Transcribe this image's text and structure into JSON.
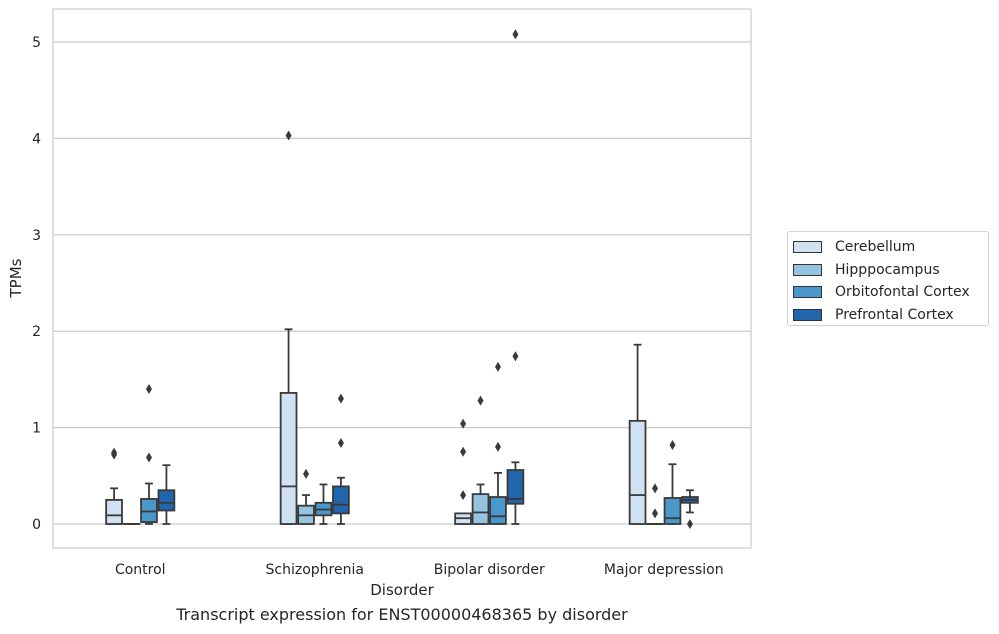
{
  "caption": "Transcript expression for ENST00000468365 by disorder",
  "chart_data": {
    "type": "box",
    "xlabel": "Disorder",
    "ylabel": "TPMs",
    "ylim": [
      -0.25,
      5.35
    ],
    "yticks": [
      0,
      1,
      2,
      3,
      4,
      5
    ],
    "grid": "horizontal",
    "legend_placement": "right",
    "categories": [
      "Control",
      "Schizophrenia",
      "Bipolar disorder",
      "Major depression"
    ],
    "series": [
      {
        "name": "Cerebellum",
        "color": "#d0e1f2",
        "boxes": [
          {
            "whislo": 0,
            "q1": 0,
            "med": 0.09,
            "q3": 0.25,
            "whishi": 0.37,
            "fliers": [
              0.72,
              0.74
            ]
          },
          {
            "whislo": 0,
            "q1": 0,
            "med": 0.39,
            "q3": 1.36,
            "whishi": 2.02,
            "fliers": [
              4.03
            ]
          },
          {
            "whislo": 0,
            "q1": 0,
            "med": 0.06,
            "q3": 0.11,
            "whishi": 0.11,
            "fliers": [
              0.3,
              0.75,
              1.04
            ]
          },
          {
            "whislo": 0,
            "q1": 0,
            "med": 0.3,
            "q3": 1.07,
            "whishi": 1.86,
            "fliers": []
          }
        ]
      },
      {
        "name": "Hipppocampus",
        "color": "#94c4df",
        "boxes": [
          {
            "whislo": 0,
            "q1": 0,
            "med": 0,
            "q3": 0,
            "whishi": 0,
            "fliers": []
          },
          {
            "whislo": 0,
            "q1": 0,
            "med": 0.09,
            "q3": 0.19,
            "whishi": 0.3,
            "fliers": [
              0.52
            ]
          },
          {
            "whislo": 0,
            "q1": 0,
            "med": 0.12,
            "q3": 0.31,
            "whishi": 0.41,
            "fliers": [
              1.28
            ]
          },
          {
            "whislo": 0,
            "q1": 0,
            "med": 0,
            "q3": 0,
            "whishi": 0,
            "fliers": [
              0.11,
              0.37
            ]
          }
        ]
      },
      {
        "name": "Orbitofontal Cortex",
        "color": "#4a98c9",
        "boxes": [
          {
            "whislo": 0,
            "q1": 0.02,
            "med": 0.13,
            "q3": 0.26,
            "whishi": 0.42,
            "fliers": [
              0.69,
              1.4
            ]
          },
          {
            "whislo": 0,
            "q1": 0.09,
            "med": 0.15,
            "q3": 0.22,
            "whishi": 0.41,
            "fliers": []
          },
          {
            "whislo": 0,
            "q1": 0,
            "med": 0.08,
            "q3": 0.28,
            "whishi": 0.53,
            "fliers": [
              0.8,
              1.63
            ]
          },
          {
            "whislo": 0,
            "q1": 0,
            "med": 0.06,
            "q3": 0.27,
            "whishi": 0.62,
            "fliers": [
              0.82
            ]
          }
        ]
      },
      {
        "name": "Prefrontal Cortex",
        "color": "#2166ac",
        "boxes": [
          {
            "whislo": 0,
            "q1": 0.14,
            "med": 0.22,
            "q3": 0.35,
            "whishi": 0.61,
            "fliers": []
          },
          {
            "whislo": 0,
            "q1": 0.11,
            "med": 0.2,
            "q3": 0.39,
            "whishi": 0.48,
            "fliers": [
              0.84,
              1.3
            ]
          },
          {
            "whislo": 0,
            "q1": 0.21,
            "med": 0.26,
            "q3": 0.56,
            "whishi": 0.64,
            "fliers": [
              1.74,
              5.08
            ]
          },
          {
            "whislo": 0.12,
            "q1": 0.22,
            "med": 0.25,
            "q3": 0.28,
            "whishi": 0.35,
            "fliers": [
              0
            ]
          }
        ]
      }
    ]
  }
}
